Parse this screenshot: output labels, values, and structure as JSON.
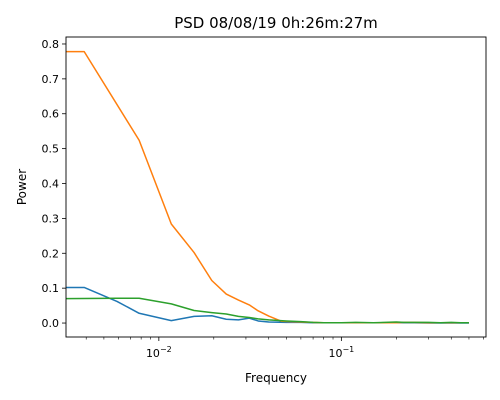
{
  "chart_data": {
    "type": "line",
    "title": "PSD 08/08/19 0h:26m:27m",
    "xlabel": "Frequency",
    "ylabel": "Power",
    "xscale": "log",
    "xlim": [
      0.0031,
      0.62
    ],
    "ylim": [
      -0.04,
      0.82
    ],
    "grid": false,
    "legend": "none",
    "x_ticks": [
      {
        "value": 0.01,
        "base": "10",
        "exp": "−2"
      },
      {
        "value": 0.1,
        "base": "10",
        "exp": "−1"
      }
    ],
    "y_ticks": [
      0.0,
      0.1,
      0.2,
      0.3,
      0.4,
      0.5,
      0.6,
      0.7,
      0.8
    ],
    "series": [
      {
        "color": "#1f77b4",
        "x": [
          0.0031,
          0.0039,
          0.0059,
          0.0078,
          0.0117,
          0.0156,
          0.0195,
          0.0234,
          0.0273,
          0.0313,
          0.035,
          0.04,
          0.05,
          0.06,
          0.07,
          0.08,
          0.1,
          0.12,
          0.15,
          0.2,
          0.25,
          0.3,
          0.4,
          0.5
        ],
        "y": [
          0.102,
          0.102,
          0.062,
          0.028,
          0.007,
          0.019,
          0.021,
          0.011,
          0.009,
          0.014,
          0.006,
          0.003,
          0.002,
          0.002,
          0.001,
          0.001,
          0.001,
          0.001,
          0.001,
          0.001,
          0.001,
          0.0,
          0.0,
          0.0
        ]
      },
      {
        "color": "#ff7f0e",
        "x": [
          0.0031,
          0.0039,
          0.0078,
          0.0117,
          0.0156,
          0.0195,
          0.0234,
          0.0273,
          0.0313,
          0.035,
          0.04,
          0.047,
          0.06,
          0.08,
          0.1,
          0.12,
          0.15,
          0.2,
          0.22,
          0.25,
          0.3,
          0.35,
          0.4,
          0.5
        ],
        "y": [
          0.778,
          0.778,
          0.524,
          0.284,
          0.202,
          0.122,
          0.083,
          0.066,
          0.052,
          0.035,
          0.02,
          0.005,
          0.003,
          0.001,
          0.001,
          0.001,
          0.001,
          0.001,
          0.002,
          0.002,
          0.001,
          0.001,
          0.001,
          0.001
        ]
      },
      {
        "color": "#2ca02c",
        "x": [
          0.0031,
          0.0059,
          0.0078,
          0.0117,
          0.0156,
          0.0195,
          0.0234,
          0.0273,
          0.0313,
          0.035,
          0.04,
          0.05,
          0.06,
          0.07,
          0.08,
          0.1,
          0.12,
          0.15,
          0.2,
          0.22,
          0.25,
          0.3,
          0.35,
          0.4,
          0.45,
          0.5
        ],
        "y": [
          0.07,
          0.071,
          0.071,
          0.055,
          0.036,
          0.03,
          0.026,
          0.019,
          0.016,
          0.012,
          0.009,
          0.006,
          0.004,
          0.002,
          0.001,
          0.001,
          0.002,
          0.001,
          0.003,
          0.002,
          0.002,
          0.002,
          0.001,
          0.002,
          0.001,
          0.001
        ]
      }
    ]
  }
}
